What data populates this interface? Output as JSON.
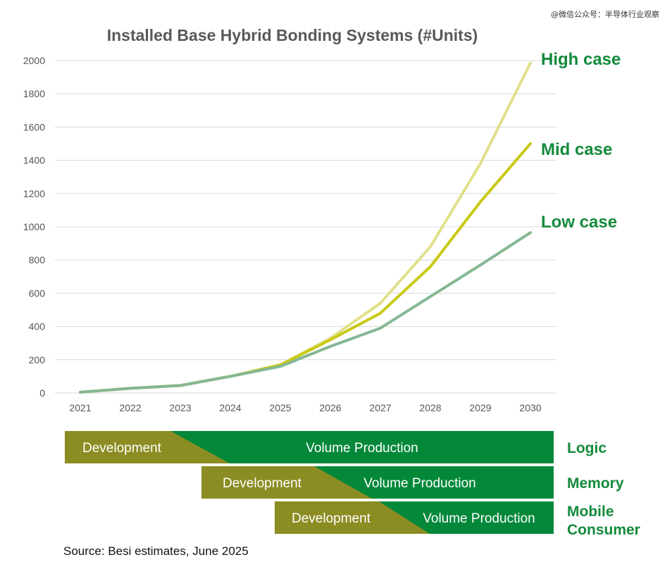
{
  "watermark": "@微信公众号：半导体行业观察",
  "source": "Source: Besi estimates, June 2025",
  "colors": {
    "high": "#e2e08a",
    "mid": "#c9c916",
    "low": "#84b894",
    "case_label": "#148a3c",
    "development": "#8b8c22",
    "volume": "#03883a",
    "grid": "#d9d9d9",
    "axis_text": "#555555",
    "title": "#595959"
  },
  "chart_data": {
    "type": "line",
    "title": "Installed Base Hybrid Bonding Systems (#Units)",
    "xlabel": "",
    "ylabel": "",
    "x": [
      "2021",
      "2022",
      "2023",
      "2024",
      "2025",
      "2026",
      "2027",
      "2028",
      "2029",
      "2030"
    ],
    "ylim": [
      0,
      2000
    ],
    "yticks": [
      0,
      200,
      400,
      600,
      800,
      1000,
      1200,
      1400,
      1600,
      1800,
      2000
    ],
    "grid": true,
    "series": [
      {
        "name": "High case",
        "key": "high",
        "values": [
          5,
          28,
          45,
          100,
          170,
          330,
          540,
          880,
          1380,
          1985
        ]
      },
      {
        "name": "Mid case",
        "key": "mid",
        "values": [
          5,
          28,
          45,
          100,
          168,
          320,
          480,
          760,
          1150,
          1500
        ]
      },
      {
        "name": "Low case",
        "key": "low",
        "values": [
          5,
          28,
          45,
          100,
          160,
          280,
          390,
          580,
          770,
          965
        ]
      }
    ]
  },
  "timeline": {
    "rows": [
      {
        "label_lines": [
          "Logic"
        ],
        "development": "Development",
        "volume": "Volume Production"
      },
      {
        "label_lines": [
          "Memory"
        ],
        "development": "Development",
        "volume": "Volume Production"
      },
      {
        "label_lines": [
          "Mobile",
          "Consumer"
        ],
        "development": "Development",
        "volume": "Volume Production"
      }
    ]
  }
}
